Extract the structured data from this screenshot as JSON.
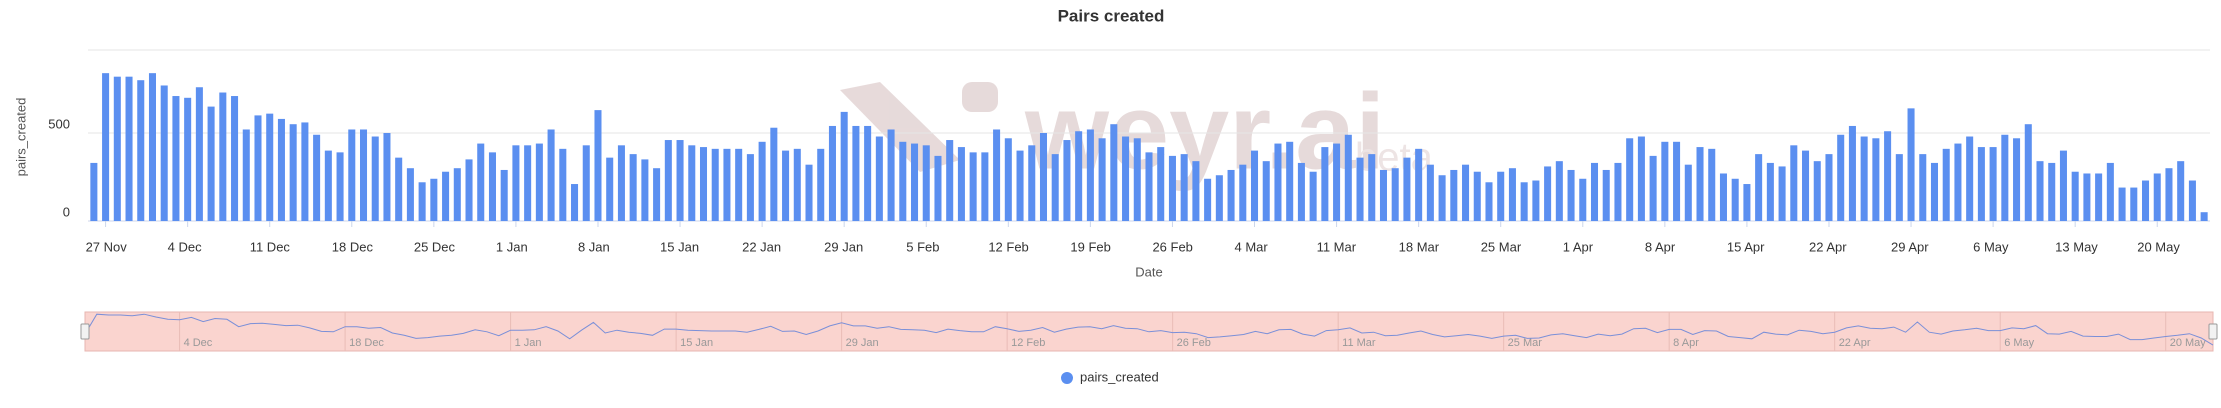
{
  "chart_data": {
    "type": "bar",
    "title": "Pairs created",
    "x_label": "Date",
    "y_label": "pairs_created",
    "watermark": "weyr.ai",
    "watermark_sub": "beta",
    "categories": [
      null,
      "27 Nov",
      null,
      null,
      null,
      null,
      null,
      null,
      "4 Dec",
      null,
      null,
      null,
      null,
      null,
      null,
      "11 Dec",
      null,
      null,
      null,
      null,
      null,
      null,
      "18 Dec",
      null,
      null,
      null,
      null,
      null,
      null,
      "25 Dec",
      null,
      null,
      null,
      null,
      null,
      null,
      "1 Jan",
      null,
      null,
      null,
      null,
      null,
      null,
      "8 Jan",
      null,
      null,
      null,
      null,
      null,
      null,
      "15 Jan",
      null,
      null,
      null,
      null,
      null,
      null,
      "22 Jan",
      null,
      null,
      null,
      null,
      null,
      null,
      "29 Jan",
      null,
      null,
      null,
      null,
      null,
      null,
      "5 Feb",
      null,
      null,
      null,
      null,
      null,
      null,
      "12 Feb",
      null,
      null,
      null,
      null,
      null,
      null,
      "19 Feb",
      null,
      null,
      null,
      null,
      null,
      null,
      "26 Feb",
      null,
      null,
      null,
      null,
      null,
      null,
      "4 Mar",
      null,
      null,
      null,
      null,
      null,
      null,
      "11 Mar",
      null,
      null,
      null,
      null,
      null,
      null,
      "18 Mar",
      null,
      null,
      null,
      null,
      null,
      null,
      "25 Mar",
      null,
      null,
      null,
      null,
      null,
      null,
      "1 Apr",
      null,
      null,
      null,
      null,
      null,
      null,
      "8 Apr",
      null,
      null,
      null,
      null,
      null,
      null,
      "15 Apr",
      null,
      null,
      null,
      null,
      null,
      null,
      "22 Apr",
      null,
      null,
      null,
      null,
      null,
      null,
      "29 Apr",
      null,
      null,
      null,
      null,
      null,
      null,
      "6 May",
      null,
      null,
      null,
      null,
      null,
      null,
      "13 May",
      null,
      null,
      null,
      null,
      null,
      null,
      "20 May",
      null,
      null,
      null,
      null
    ],
    "series": [
      {
        "name": "pairs_created",
        "color": "#5b8ff0",
        "values": [
          330,
          840,
          820,
          820,
          800,
          840,
          770,
          710,
          700,
          760,
          650,
          730,
          710,
          520,
          600,
          610,
          580,
          550,
          560,
          490,
          400,
          390,
          520,
          520,
          480,
          500,
          360,
          300,
          220,
          240,
          280,
          300,
          350,
          440,
          390,
          290,
          430,
          430,
          440,
          520,
          410,
          210,
          430,
          630,
          360,
          430,
          380,
          350,
          300,
          460,
          460,
          430,
          420,
          410,
          410,
          410,
          380,
          450,
          530,
          400,
          410,
          320,
          410,
          540,
          620,
          540,
          540,
          480,
          520,
          450,
          440,
          430,
          370,
          460,
          420,
          390,
          390,
          520,
          470,
          400,
          430,
          500,
          380,
          460,
          510,
          520,
          470,
          550,
          480,
          470,
          390,
          420,
          370,
          380,
          340,
          240,
          260,
          290,
          320,
          400,
          340,
          440,
          450,
          330,
          280,
          420,
          440,
          490,
          360,
          380,
          290,
          300,
          360,
          410,
          320,
          260,
          290,
          320,
          280,
          220,
          280,
          300,
          220,
          230,
          310,
          340,
          290,
          240,
          330,
          290,
          330,
          470,
          480,
          370,
          450,
          450,
          320,
          420,
          410,
          270,
          240,
          210,
          380,
          330,
          310,
          430,
          400,
          340,
          380,
          490,
          540,
          480,
          470,
          510,
          380,
          640,
          380,
          330,
          410,
          440,
          480,
          420,
          420,
          490,
          470,
          550,
          340,
          330,
          400,
          280,
          270,
          270,
          330,
          190,
          190,
          230,
          270,
          300,
          340,
          230,
          50
        ]
      }
    ],
    "ylim": [
      0,
      1000
    ],
    "yticks": [
      0,
      500
    ],
    "grid": true,
    "legend": "bottom",
    "navigator_labels": [
      "4 Dec",
      "18 Dec",
      "1 Jan",
      "15 Jan",
      "29 Jan",
      "12 Feb",
      "26 Feb",
      "11 Mar",
      "25 Mar",
      "8 Apr",
      "22 Apr",
      "6 May",
      "20 May"
    ]
  }
}
